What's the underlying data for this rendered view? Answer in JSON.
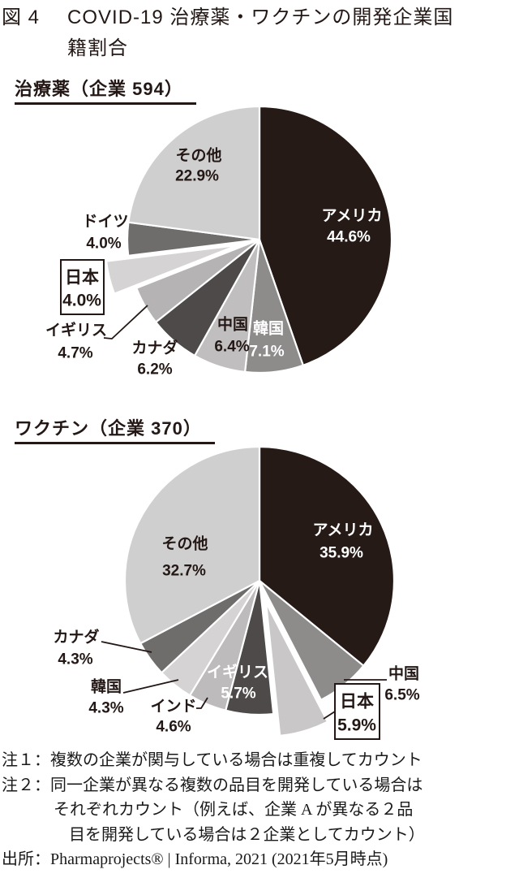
{
  "figure": {
    "label": "図 4",
    "title_line1": "COVID-19 治療薬・ワクチンの開発企業国",
    "title_line2": "籍割合"
  },
  "chart_data": [
    {
      "type": "pie",
      "id": "drugs",
      "header": "治療薬（企業 594）",
      "companies": 594,
      "start_angle_deg": 0,
      "direction": "clockwise",
      "slices": [
        {
          "key": "usa",
          "name": "アメリカ",
          "value": 44.6,
          "color": "#251a16",
          "label_color": "#ffffff"
        },
        {
          "key": "south-korea",
          "name": "韓国",
          "value": 7.1,
          "color": "#8e8b8b",
          "label_color": "#ffffff"
        },
        {
          "key": "china",
          "name": "中国",
          "value": 6.4,
          "color": "#c0bebe",
          "label_color": "#231815"
        },
        {
          "key": "canada",
          "name": "カナダ",
          "value": 6.2,
          "color": "#4d4a49",
          "label_color": "#231815"
        },
        {
          "key": "uk",
          "name": "イギリス",
          "value": 4.7,
          "color": "#b5b3b3",
          "label_color": "#231815"
        },
        {
          "key": "japan",
          "name": "日本",
          "value": 4.0,
          "color": "#d5d3d3",
          "label_color": "#231815",
          "exploded": true,
          "boxed_label": true
        },
        {
          "key": "germany",
          "name": "ドイツ",
          "value": 4.0,
          "color": "#6f6c6c",
          "label_color": "#231815"
        },
        {
          "key": "others",
          "name": "その他",
          "value": 22.9,
          "color": "#d0cfcf",
          "label_color": "#231815"
        }
      ]
    },
    {
      "type": "pie",
      "id": "vaccines",
      "header": "ワクチン（企業 370）",
      "companies": 370,
      "start_angle_deg": 0,
      "direction": "clockwise",
      "slices": [
        {
          "key": "usa",
          "name": "アメリカ",
          "value": 35.9,
          "color": "#251a16",
          "label_color": "#ffffff"
        },
        {
          "key": "china",
          "name": "中国",
          "value": 6.5,
          "color": "#8e8b8b",
          "label_color": "#231815"
        },
        {
          "key": "japan",
          "name": "日本",
          "value": 5.9,
          "color": "#c9c7c7",
          "label_color": "#231815",
          "exploded": true,
          "boxed_label": true
        },
        {
          "key": "uk",
          "name": "イギリス",
          "value": 5.7,
          "color": "#4d4a49",
          "label_color": "#ffffff"
        },
        {
          "key": "india",
          "name": "インド",
          "value": 4.6,
          "color": "#bdbbbb",
          "label_color": "#231815"
        },
        {
          "key": "south-korea",
          "name": "韓国",
          "value": 4.3,
          "color": "#d5d3d3",
          "label_color": "#231815"
        },
        {
          "key": "canada",
          "name": "カナダ",
          "value": 4.3,
          "color": "#6f6c6c",
          "label_color": "#231815"
        },
        {
          "key": "others",
          "name": "その他",
          "value": 32.7,
          "color": "#d0cfcf",
          "label_color": "#231815"
        }
      ]
    }
  ],
  "notes": [
    "注１：複数の企業が関与している場合は重複してカウント",
    "注２：同一企業が異なる複数の品目を開発している場合は",
    "それぞれカウント（例えば、企業 A が異なる２品",
    "目を開発している場合は２企業としてカウント）"
  ],
  "source": "出所：Pharmaprojects® | Informa, 2021 (2021年5月時点)"
}
